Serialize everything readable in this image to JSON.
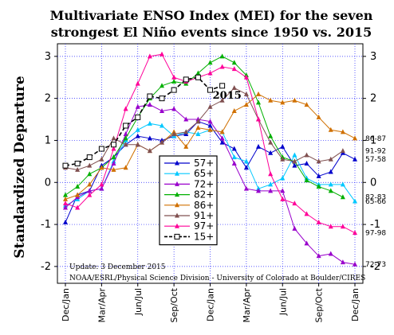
{
  "chart_data": {
    "type": "line",
    "title_line1": "Multivariate ENSO Index (MEI) for the seven",
    "title_line2": "strongest El Niño events since 1950 vs. 2015",
    "ylabel": "Standardized Departure",
    "ylim": [
      -2.4,
      3.3
    ],
    "yticks": [
      -2,
      -1,
      0,
      1,
      2,
      3
    ],
    "yticks_right": [
      -2,
      -1,
      0,
      1,
      2,
      3
    ],
    "grid": true,
    "x_tick_labels": [
      "Dec/Jan",
      "Mar/Apr",
      "Jun/Jul",
      "Sep/Oct",
      "Dec/Jan",
      "Mar/Apr",
      "Jun/Jul",
      "Sep/Oct",
      "Dec/Jan"
    ],
    "series": [
      {
        "name": "57+",
        "end_label": "57-58",
        "color": "#0000cc",
        "marker": "triangle",
        "values": [
          -0.95,
          -0.3,
          -0.2,
          0.4,
          0.6,
          0.9,
          1.1,
          1.05,
          1.0,
          1.1,
          1.15,
          1.45,
          1.35,
          0.95,
          0.8,
          0.35,
          0.85,
          0.7,
          0.85,
          0.4,
          0.45,
          0.15,
          0.25,
          0.7,
          0.55
        ]
      },
      {
        "name": "65+",
        "end_label": "65-66",
        "color": "#00c8ff",
        "marker": "triangle",
        "values": [
          -0.55,
          -0.4,
          -0.2,
          -0.15,
          0.5,
          1.0,
          1.25,
          1.4,
          1.35,
          1.1,
          1.2,
          1.15,
          1.25,
          1.2,
          0.6,
          0.5,
          -0.15,
          -0.05,
          0.1,
          0.65,
          0.1,
          -0.05,
          -0.05,
          -0.05,
          -0.45
        ]
      },
      {
        "name": "72+",
        "end_label": "72-73",
        "color": "#9900cc",
        "marker": "triangle",
        "values": [
          -0.6,
          -0.35,
          -0.2,
          -0.15,
          0.45,
          1.15,
          1.8,
          1.85,
          1.7,
          1.75,
          1.5,
          1.5,
          1.45,
          1.05,
          0.45,
          -0.15,
          -0.2,
          -0.2,
          -0.2,
          -1.1,
          -1.45,
          -1.75,
          -1.7,
          -1.9,
          -1.95
        ]
      },
      {
        "name": "82+",
        "end_label": "82-83",
        "color": "#00b000",
        "marker": "triangle",
        "values": [
          -0.3,
          -0.1,
          0.2,
          0.35,
          0.6,
          1.05,
          1.55,
          2.0,
          2.3,
          2.4,
          2.35,
          2.6,
          2.85,
          3.0,
          2.85,
          2.55,
          1.9,
          1.1,
          0.6,
          0.5,
          0.05,
          -0.1,
          -0.2,
          -0.35
        ]
      },
      {
        "name": "86+",
        "end_label": "86-87",
        "color": "#d07000",
        "marker": "triangle",
        "values": [
          -0.4,
          -0.3,
          -0.05,
          0.35,
          0.3,
          0.35,
          0.9,
          0.75,
          0.95,
          1.2,
          0.85,
          1.3,
          1.25,
          1.2,
          1.7,
          1.85,
          2.1,
          1.95,
          1.9,
          1.95,
          1.85,
          1.55,
          1.25,
          1.2,
          1.05
        ]
      },
      {
        "name": "91+",
        "end_label": "91-92",
        "color": "#805050",
        "marker": "triangle",
        "values": [
          0.35,
          0.3,
          0.4,
          0.55,
          1.05,
          0.9,
          0.9,
          0.75,
          0.95,
          1.15,
          1.2,
          1.45,
          1.8,
          1.95,
          2.25,
          2.1,
          1.5,
          0.95,
          0.55,
          0.5,
          0.65,
          0.5,
          0.55,
          0.75
        ]
      },
      {
        "name": "97+",
        "end_label": "97-98",
        "color": "#ff0099",
        "marker": "triangle",
        "values": [
          -0.5,
          -0.6,
          -0.3,
          -0.05,
          0.8,
          1.75,
          2.35,
          3.0,
          3.05,
          2.5,
          2.4,
          2.5,
          2.6,
          2.75,
          2.7,
          2.5,
          1.5,
          0.2,
          -0.4,
          -0.5,
          -0.75,
          -0.95,
          -1.05,
          -1.05,
          -1.2
        ]
      },
      {
        "name": "15+",
        "label": "2015",
        "color": "#000000",
        "marker": "square",
        "dashed": true,
        "values": [
          0.4,
          0.45,
          0.6,
          0.8,
          0.9,
          1.35,
          1.55,
          2.05,
          2.0,
          2.2,
          2.45,
          2.5,
          2.2,
          2.3
        ]
      }
    ],
    "annotations": [
      "Update: 3 December 2015",
      "NOAA/ESRL/Physical Science Division - University of Colorado at Boulder/CIRES"
    ],
    "legend_placement": "center"
  }
}
